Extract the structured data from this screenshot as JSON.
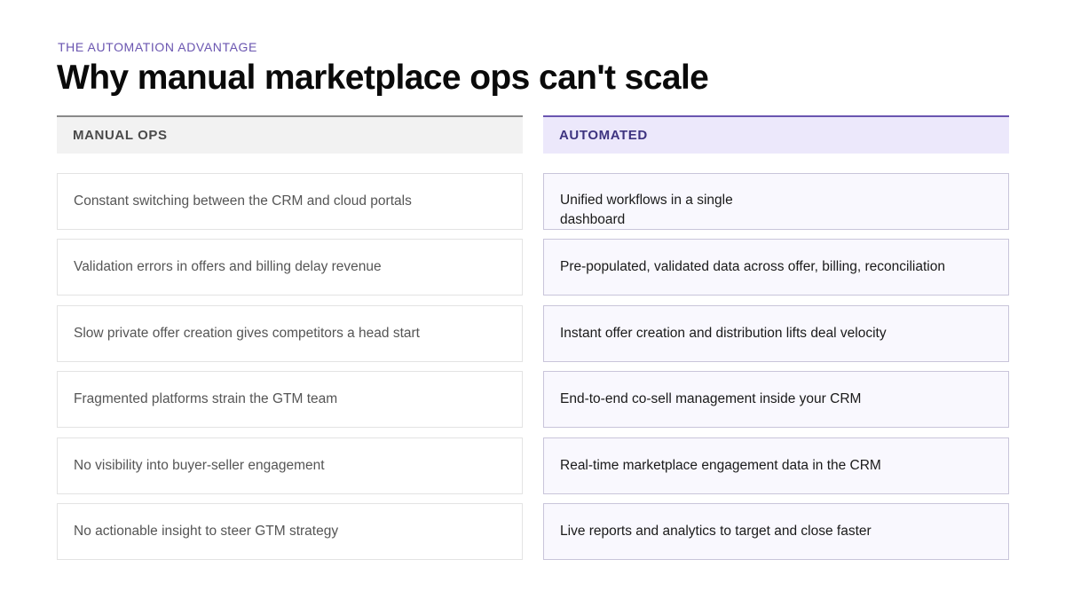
{
  "eyebrow": "THE AUTOMATION ADVANTAGE",
  "title": "Why manual marketplace ops can't scale",
  "colors": {
    "accent": "#6a55b0",
    "manual_header_bg": "#f2f2f2",
    "auto_header_bg": "#ece8fb"
  },
  "manual": {
    "header": "MANUAL OPS",
    "rows": [
      "Constant switching between the CRM and cloud portals",
      "Validation errors in offers and billing delay revenue",
      "Slow private offer creation gives competitors a head start",
      "Fragmented platforms strain the GTM team",
      "No visibility into buyer-seller engagement",
      "No actionable insight to steer GTM strategy"
    ]
  },
  "automated": {
    "header": "AUTOMATED",
    "rows": [
      "Unified workflows in a single dashboard",
      "Pre-populated, validated data across offer, billing, reconciliation",
      "Instant offer creation and distribution lifts deal velocity",
      "End-to-end co-sell management inside your CRM",
      "Real-time marketplace engagement data in the CRM",
      "Live reports and analytics to target and close faster"
    ]
  }
}
